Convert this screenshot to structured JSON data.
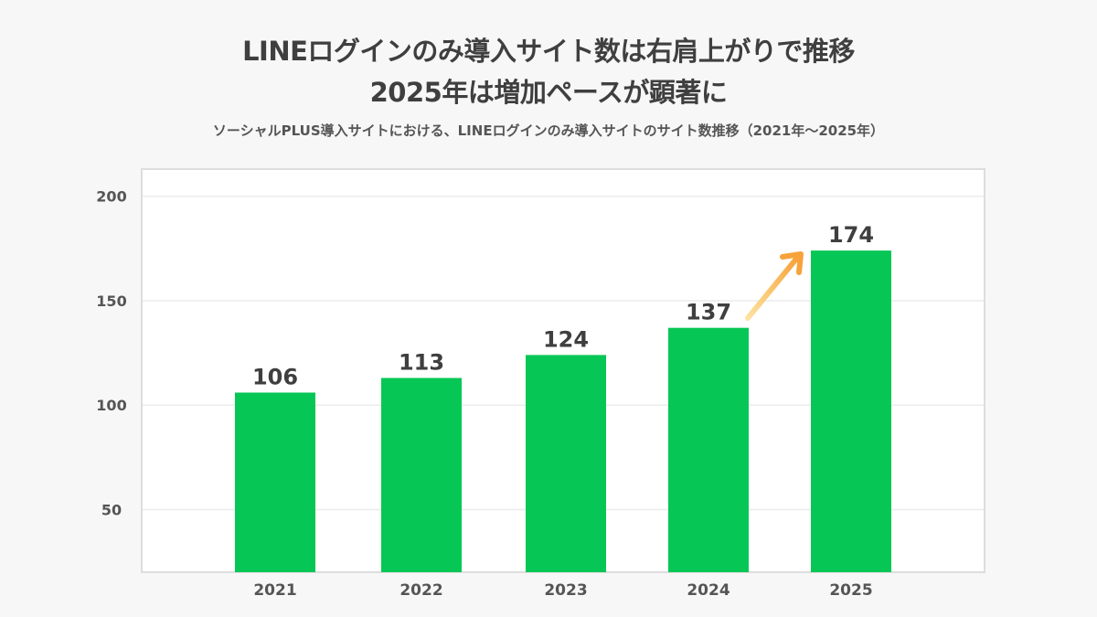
{
  "chart_data": {
    "type": "bar",
    "title": [
      "LINEログインのみ導入サイト数は右肩上がりで推移",
      "2025年は増加ペースが顕著に"
    ],
    "subtitle": "ソーシャルPLUS導入サイトにおける、LINEログインのみ導入サイトのサイト数推移（2021年〜2025年）",
    "categories": [
      "2021",
      "2022",
      "2023",
      "2024",
      "2025"
    ],
    "values": [
      106,
      113,
      124,
      137,
      174
    ],
    "data_labels": [
      "106",
      "113",
      "124",
      "137",
      "174"
    ],
    "xlabel": "",
    "ylabel": "",
    "ylim": [
      20,
      213
    ],
    "yticks": [
      50,
      100,
      150,
      200
    ],
    "grid": true,
    "annotation": "upward-arrow between 2024 and 2025",
    "colors": {
      "bar": "#06c755",
      "arrow_start": "#fde2a0",
      "arrow_end": "#f7a23a",
      "background": "#f7f7f7"
    }
  }
}
